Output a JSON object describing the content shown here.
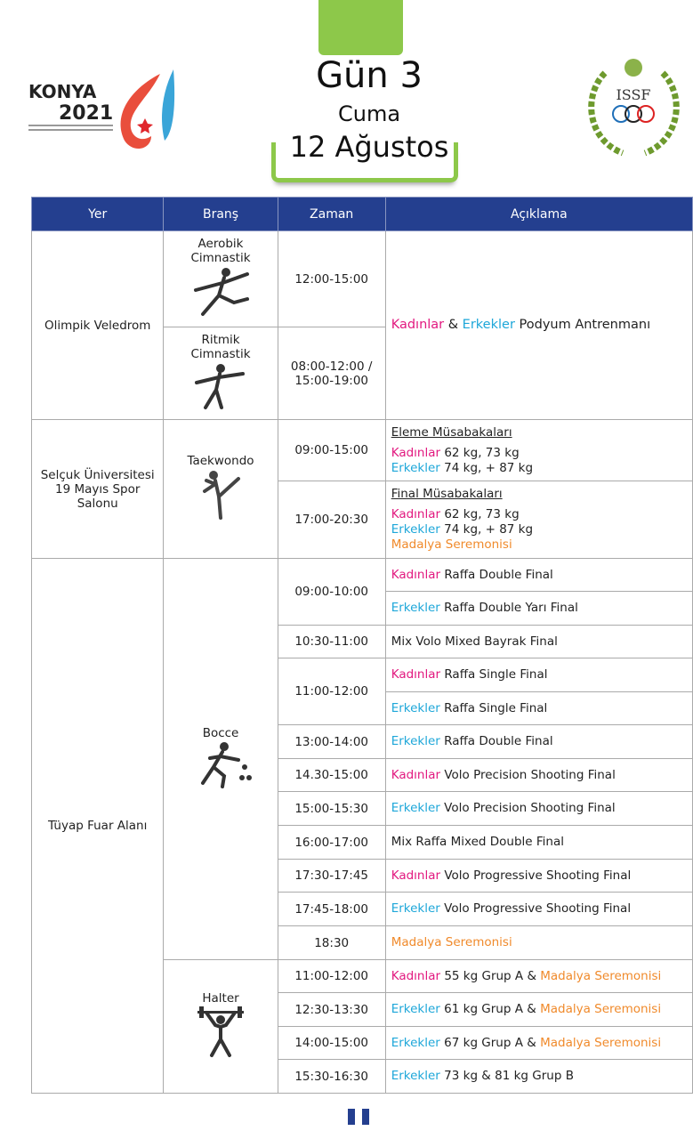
{
  "header": {
    "day": "Gün 3",
    "weekday": "Cuma",
    "date": "12 Ağustos",
    "left_logo": "KONYA 2021 5. İslami Dayanışma Oyunları 5th Islamic Solidarity Games",
    "right_logo": "ISSF"
  },
  "colors": {
    "women": "#e2187f",
    "men": "#1ea7d9",
    "ceremony": "#f08a2b",
    "header_bg": "#243f8f",
    "accent_green": "#8dc84a"
  },
  "columns": [
    "Yer",
    "Branş",
    "Zaman",
    "Açıklama"
  ],
  "venues": [
    {
      "name": "Olimpik Veledrom",
      "shared": {
        "lines": [
          [
            {
              "text": "Kadınlar",
              "c": "women"
            },
            {
              "text": " & "
            },
            {
              "text": "Erkekler",
              "c": "men"
            },
            {
              "text": " Podyum Antrenmanı"
            }
          ]
        ]
      },
      "branches": [
        {
          "name": "Aerobik Cimnastik",
          "icon": "aerobic-gymnast-icon",
          "slots": [
            {
              "time": "12:00-15:00"
            }
          ]
        },
        {
          "name": "Ritmik Cimnastik",
          "icon": "rhythmic-gymnast-icon",
          "slots": [
            {
              "time": "08:00-12:00 / 15:00-19:00"
            }
          ]
        }
      ]
    },
    {
      "name": "Selçuk Üniversitesi 19 Mayıs Spor Salonu",
      "branches": [
        {
          "name": "Taekwondo",
          "icon": "taekwondo-icon",
          "slots": [
            {
              "time": "09:00-15:00",
              "items": [
                {
                  "lines": [
                    [
                      {
                        "text": "Eleme Müsabakaları",
                        "u": true
                      }
                    ],
                    [
                      {
                        "text": "Kadınlar",
                        "c": "women"
                      },
                      {
                        "text": " 62 kg, 73 kg"
                      }
                    ],
                    [
                      {
                        "text": "Erkekler",
                        "c": "men"
                      },
                      {
                        "text": " 74 kg, + 87 kg"
                      }
                    ]
                  ]
                }
              ]
            },
            {
              "time": "17:00-20:30",
              "items": [
                {
                  "lines": [
                    [
                      {
                        "text": "Final Müsabakaları",
                        "u": true
                      }
                    ],
                    [
                      {
                        "text": "Kadınlar",
                        "c": "women"
                      },
                      {
                        "text": " 62 kg, 73 kg"
                      }
                    ],
                    [
                      {
                        "text": "Erkekler",
                        "c": "men"
                      },
                      {
                        "text": " 74 kg, + 87 kg"
                      }
                    ],
                    [
                      {
                        "text": "Madalya Seremonisi",
                        "c": "ceremony"
                      }
                    ]
                  ]
                }
              ]
            }
          ]
        }
      ]
    },
    {
      "name": "Tüyap Fuar Alanı",
      "branches": [
        {
          "name": "Bocce",
          "icon": "bocce-player-icon",
          "slots": [
            {
              "time": "09:00-10:00",
              "items": [
                {
                  "lines": [
                    [
                      {
                        "text": "Kadınlar",
                        "c": "women"
                      },
                      {
                        "text": " Raffa Double Final"
                      }
                    ]
                  ]
                },
                {
                  "lines": [
                    [
                      {
                        "text": "Erkekler",
                        "c": "men"
                      },
                      {
                        "text": " Raffa Double Yarı Final"
                      }
                    ]
                  ]
                }
              ]
            },
            {
              "time": "10:30-11:00",
              "items": [
                {
                  "lines": [
                    [
                      {
                        "text": "Mix Volo Mixed Bayrak Final"
                      }
                    ]
                  ]
                }
              ]
            },
            {
              "time": "11:00-12:00",
              "items": [
                {
                  "lines": [
                    [
                      {
                        "text": "Kadınlar",
                        "c": "women"
                      },
                      {
                        "text": " Raffa Single Final"
                      }
                    ]
                  ]
                },
                {
                  "lines": [
                    [
                      {
                        "text": "Erkekler",
                        "c": "men"
                      },
                      {
                        "text": " Raffa Single Final"
                      }
                    ]
                  ]
                }
              ]
            },
            {
              "time": "13:00-14:00",
              "items": [
                {
                  "lines": [
                    [
                      {
                        "text": "Erkekler",
                        "c": "men"
                      },
                      {
                        "text": " Raffa Double Final"
                      }
                    ]
                  ]
                }
              ]
            },
            {
              "time": "14.30-15:00",
              "items": [
                {
                  "lines": [
                    [
                      {
                        "text": "Kadınlar",
                        "c": "women"
                      },
                      {
                        "text": " Volo Precision Shooting Final"
                      }
                    ]
                  ]
                }
              ]
            },
            {
              "time": "15:00-15:30",
              "items": [
                {
                  "lines": [
                    [
                      {
                        "text": "Erkekler",
                        "c": "men"
                      },
                      {
                        "text": " Volo Precision Shooting Final"
                      }
                    ]
                  ]
                }
              ]
            },
            {
              "time": "16:00-17:00",
              "items": [
                {
                  "lines": [
                    [
                      {
                        "text": "Mix Raffa Mixed Double Final"
                      }
                    ]
                  ]
                }
              ]
            },
            {
              "time": "17:30-17:45",
              "items": [
                {
                  "lines": [
                    [
                      {
                        "text": "Kadınlar",
                        "c": "women"
                      },
                      {
                        "text": " Volo Progressive Shooting Final"
                      }
                    ]
                  ]
                }
              ]
            },
            {
              "time": "17:45-18:00",
              "items": [
                {
                  "lines": [
                    [
                      {
                        "text": "Erkekler",
                        "c": "men"
                      },
                      {
                        "text": " Volo Progressive Shooting Final"
                      }
                    ]
                  ]
                }
              ]
            },
            {
              "time": "18:30",
              "items": [
                {
                  "lines": [
                    [
                      {
                        "text": "Madalya Seremonisi",
                        "c": "ceremony"
                      }
                    ]
                  ]
                }
              ]
            }
          ]
        },
        {
          "name": "Halter",
          "icon": "weightlifter-icon",
          "slots": [
            {
              "time": "11:00-12:00",
              "items": [
                {
                  "lines": [
                    [
                      {
                        "text": "Kadınlar",
                        "c": "women"
                      },
                      {
                        "text": " 55 kg Grup A & "
                      },
                      {
                        "text": "Madalya Seremonisi",
                        "c": "ceremony"
                      }
                    ]
                  ]
                }
              ]
            },
            {
              "time": "12:30-13:30",
              "items": [
                {
                  "lines": [
                    [
                      {
                        "text": "Erkekler",
                        "c": "men"
                      },
                      {
                        "text": " 61 kg Grup A & "
                      },
                      {
                        "text": "Madalya Seremonisi",
                        "c": "ceremony"
                      }
                    ]
                  ]
                }
              ]
            },
            {
              "time": "14:00-15:00",
              "items": [
                {
                  "lines": [
                    [
                      {
                        "text": "Erkekler",
                        "c": "men"
                      },
                      {
                        "text": " 67 kg Grup A & "
                      },
                      {
                        "text": "Madalya Seremonisi",
                        "c": "ceremony"
                      }
                    ]
                  ]
                }
              ]
            },
            {
              "time": "15:30-16:30",
              "items": [
                {
                  "lines": [
                    [
                      {
                        "text": "Erkekler",
                        "c": "men"
                      },
                      {
                        "text": " 73 kg & 81 kg Grup B"
                      }
                    ]
                  ]
                }
              ]
            }
          ]
        }
      ]
    }
  ]
}
